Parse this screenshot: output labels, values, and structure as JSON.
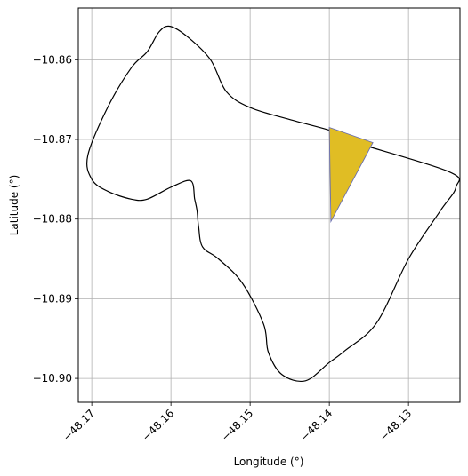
{
  "chart_data": {
    "type": "map",
    "xlabel": "Longitude (°)",
    "ylabel": "Latitude (°)",
    "xlim": [
      -48.1717,
      -48.1235
    ],
    "ylim": [
      -10.903,
      -10.8535
    ],
    "grid": true,
    "x_ticks": [
      {
        "value": -48.17,
        "label": "−48.17"
      },
      {
        "value": -48.16,
        "label": "−48.16"
      },
      {
        "value": -48.15,
        "label": "−48.15"
      },
      {
        "value": -48.14,
        "label": "−48.14"
      },
      {
        "value": -48.13,
        "label": "−48.13"
      }
    ],
    "y_ticks": [
      {
        "value": -10.86,
        "label": "−10.86"
      },
      {
        "value": -10.87,
        "label": "−10.87"
      },
      {
        "value": -10.88,
        "label": "−10.88"
      },
      {
        "value": -10.89,
        "label": "−10.89"
      },
      {
        "value": -10.9,
        "label": "−10.90"
      }
    ],
    "boundary": {
      "stroke": "#000000",
      "points": [
        [
          -48.1601,
          -10.8558
        ],
        [
          -48.1578,
          -10.8572
        ],
        [
          -48.155,
          -10.86
        ],
        [
          -48.153,
          -10.864
        ],
        [
          -48.15,
          -10.866
        ],
        [
          -48.145,
          -10.8675
        ],
        [
          -48.1395,
          -10.869
        ],
        [
          -48.138,
          -10.87
        ],
        [
          -48.125,
          -10.874
        ],
        [
          -48.124,
          -10.876
        ],
        [
          -48.126,
          -10.879
        ],
        [
          -48.13,
          -10.885
        ],
        [
          -48.134,
          -10.893
        ],
        [
          -48.138,
          -10.8965
        ],
        [
          -48.14,
          -10.898
        ],
        [
          -48.143,
          -10.9003
        ],
        [
          -48.146,
          -10.8995
        ],
        [
          -48.1477,
          -10.8967
        ],
        [
          -48.1483,
          -10.8932
        ],
        [
          -48.151,
          -10.888
        ],
        [
          -48.154,
          -10.885
        ],
        [
          -48.156,
          -10.8835
        ],
        [
          -48.1565,
          -10.881
        ],
        [
          -48.1567,
          -10.879
        ],
        [
          -48.157,
          -10.8775
        ],
        [
          -48.1575,
          -10.8752
        ],
        [
          -48.16,
          -10.876
        ],
        [
          -48.163,
          -10.8775
        ],
        [
          -48.165,
          -10.8775
        ],
        [
          -48.168,
          -10.8765
        ],
        [
          -48.17,
          -10.875
        ],
        [
          -48.1705,
          -10.872
        ],
        [
          -48.168,
          -10.866
        ],
        [
          -48.165,
          -10.861
        ],
        [
          -48.163,
          -10.859
        ],
        [
          -48.1615,
          -10.8565
        ]
      ]
    },
    "highlight": {
      "fill": "#e0bd24",
      "stroke": "#6b6fae",
      "points": [
        [
          -48.14,
          -10.8685
        ],
        [
          -48.1345,
          -10.8704
        ],
        [
          -48.1398,
          -10.8803
        ]
      ]
    }
  }
}
